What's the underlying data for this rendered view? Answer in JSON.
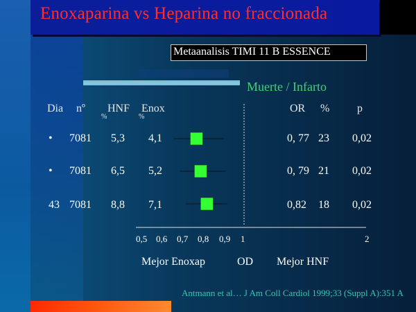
{
  "header": {
    "title": "Enoxaparina  vs  Heparina no fraccionada",
    "subtitle": "Metaanalisis  TIMI 11 B  ESSENCE"
  },
  "table": {
    "chart_title": "Muerte / Infarto",
    "columns": {
      "dia": "Dia",
      "n": "nº",
      "hnf": "HNF",
      "enox": "Enox",
      "hnf_pct": "%",
      "enox_pct": "%",
      "or": "OR",
      "or_pct": "%",
      "p": "p"
    },
    "rows": [
      {
        "dia": "•",
        "n": "7081",
        "hnf": "5,3",
        "enox": "4,1",
        "or": "0, 77",
        "pct": "23",
        "p": "0,02"
      },
      {
        "dia": "•",
        "n": "7081",
        "hnf": "6,5",
        "enox": "5,2",
        "or": "0, 79",
        "pct": "21",
        "p": "0,02"
      },
      {
        "dia": "43",
        "n": "7081",
        "hnf": "8,8",
        "enox": "7,1",
        "or": "0,82",
        "pct": "18",
        "p": "0,02"
      }
    ]
  },
  "axis": {
    "ticks": [
      "0,5",
      "0,6",
      "0,7",
      "0,8",
      "0,9",
      "1",
      "2"
    ],
    "label_left": "Mejor  Enoxap",
    "label_mid": "OD",
    "label_right": "Mejor HNF"
  },
  "citation": "Antmann et al… J Am Coll Cardiol 1999;33 (Suppl A):351 A",
  "chart_data": {
    "type": "forest",
    "rows": [
      {
        "or": 0.77,
        "ci_low": 0.66,
        "ci_high": 0.9
      },
      {
        "or": 0.79,
        "ci_low": 0.69,
        "ci_high": 0.91
      },
      {
        "or": 0.82,
        "ci_low": 0.72,
        "ci_high": 0.92
      }
    ],
    "reference": 1,
    "marker_color": "#33ff33"
  }
}
